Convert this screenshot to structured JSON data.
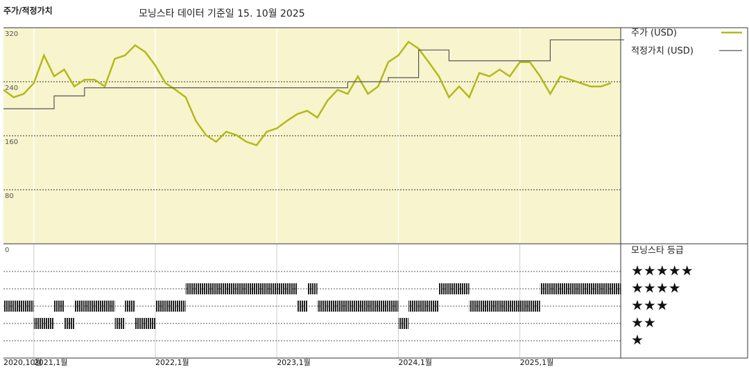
{
  "chart_data": {
    "type": "line",
    "header": "주가/적정가치",
    "title": "모닝스타 데이터 기준일 15. 10월 2025",
    "x": [
      "2020,10월",
      null,
      null,
      "2021,1월",
      null,
      null,
      null,
      null,
      null,
      null,
      null,
      null,
      null,
      null,
      null,
      "2022,1월",
      null,
      null,
      null,
      null,
      null,
      null,
      null,
      null,
      null,
      null,
      null,
      "2023,1월",
      null,
      null,
      null,
      null,
      null,
      null,
      null,
      null,
      null,
      null,
      null,
      "2024,1월",
      null,
      null,
      null,
      null,
      null,
      null,
      null,
      null,
      null,
      null,
      null,
      "2025,1월",
      null,
      null,
      null,
      null,
      null,
      null,
      null,
      null,
      null,
      null
    ],
    "ylim": [
      0,
      320
    ],
    "yticks": [
      0,
      80,
      160,
      240,
      320
    ],
    "grid": true,
    "series": [
      {
        "name": "주가 (USD)",
        "color": "#b3b919",
        "values": [
          228,
          217,
          222,
          238,
          279,
          248,
          258,
          233,
          243,
          243,
          233,
          274,
          279,
          294,
          284,
          264,
          238,
          228,
          217,
          182,
          161,
          151,
          166,
          161,
          151,
          146,
          166,
          171,
          182,
          192,
          197,
          187,
          212,
          228,
          222,
          248,
          222,
          233,
          269,
          279,
          299,
          289,
          269,
          248,
          217,
          233,
          217,
          253,
          248,
          258,
          248,
          269,
          269,
          248,
          222,
          248,
          243,
          238,
          233,
          233,
          238,
          null
        ]
      },
      {
        "name": "적정가치 (USD)",
        "color": "#555555",
        "step": true,
        "values": [
          200,
          200,
          200,
          200,
          200,
          219,
          219,
          219,
          231,
          231,
          231,
          231,
          231,
          231,
          231,
          231,
          231,
          231,
          231,
          231,
          231,
          231,
          231,
          231,
          231,
          231,
          231,
          231,
          231,
          231,
          231,
          231,
          231,
          231,
          240,
          240,
          240,
          240,
          246,
          246,
          246,
          287,
          287,
          287,
          271,
          271,
          271,
          271,
          271,
          271,
          271,
          271,
          271,
          271,
          302,
          302,
          302,
          302,
          302,
          302,
          302,
          302
        ]
      },
      {
        "name": "모닝스타 등급",
        "color": "#222222",
        "type": "rating",
        "values": [
          3,
          3,
          3,
          2,
          2,
          3,
          2,
          3,
          3,
          3,
          3,
          2,
          3,
          2,
          2,
          3,
          3,
          3,
          4,
          4,
          4,
          4,
          4,
          4,
          4,
          4,
          4,
          4,
          4,
          3,
          4,
          3,
          3,
          3,
          3,
          3,
          3,
          3,
          3,
          2,
          3,
          3,
          3,
          4,
          4,
          4,
          3,
          3,
          3,
          3,
          3,
          3,
          3,
          4,
          4,
          4,
          4,
          4,
          4,
          4,
          4,
          null
        ]
      }
    ],
    "rating_ticks": [
      {
        "value": 5,
        "label": "★★★★★"
      },
      {
        "value": 4,
        "label": "★★★★"
      },
      {
        "value": 3,
        "label": "★★★"
      },
      {
        "value": 2,
        "label": "★★"
      },
      {
        "value": 1,
        "label": "★"
      }
    ]
  }
}
